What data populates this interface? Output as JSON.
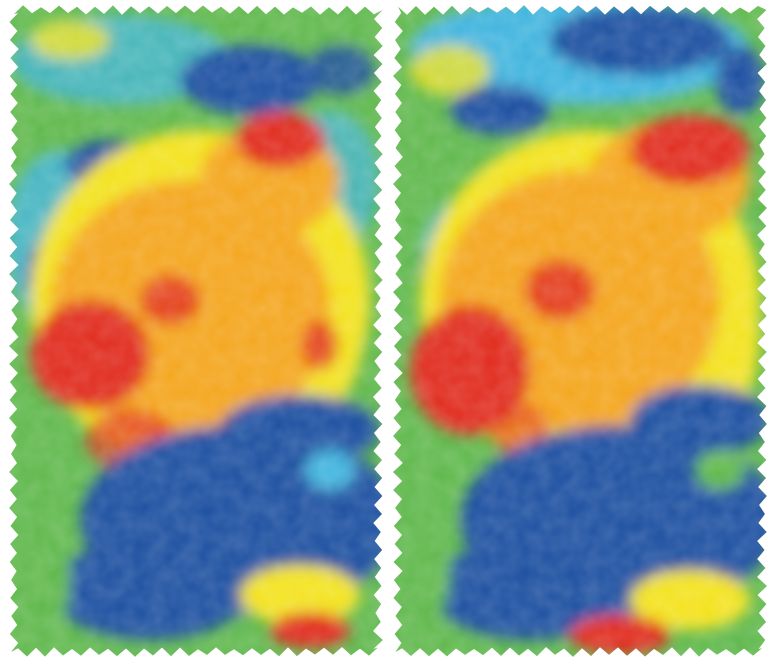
{
  "figure": {
    "panels": [
      {
        "name": "left-field-map",
        "field_shape": "jagged-rectangle"
      },
      {
        "name": "right-field-map",
        "field_shape": "jagged-rectangle"
      }
    ],
    "colors": {
      "background": "#ffffff",
      "very_low": "#1f4fa0",
      "low": "#3fb4de",
      "mid_low": "#5fb84c",
      "mid": "#f3e21c",
      "mid_high": "#f4a51e",
      "high": "#e02a1e"
    },
    "legend_visible": false,
    "labels_visible": false
  }
}
